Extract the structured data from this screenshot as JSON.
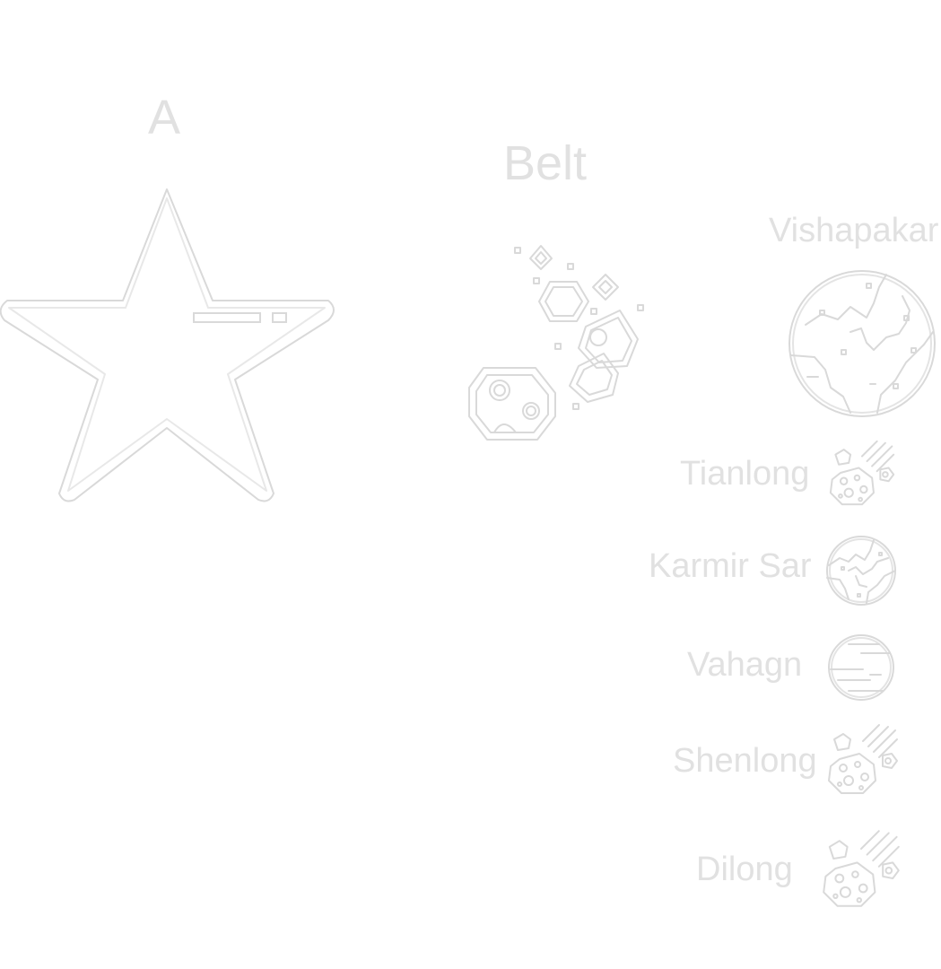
{
  "star": {
    "label": "A",
    "icon": "star-icon"
  },
  "belt": {
    "label": "Belt",
    "icon": "asteroid-belt-icon"
  },
  "bodies": [
    {
      "label": "Vishapakar",
      "icon": "continents-planet-icon"
    },
    {
      "label": "Tianlong",
      "icon": "asteroid-comet-icon"
    },
    {
      "label": "Karmir Sar",
      "icon": "continents-planet-icon"
    },
    {
      "label": "Vahagn",
      "icon": "gas-giant-icon"
    },
    {
      "label": "Shenlong",
      "icon": "asteroid-comet-icon"
    },
    {
      "label": "Dilong",
      "icon": "asteroid-comet-icon"
    }
  ],
  "colors": {
    "background": "#ffffff",
    "outline": "#d9d9d9",
    "text": "#e1e1e1"
  }
}
